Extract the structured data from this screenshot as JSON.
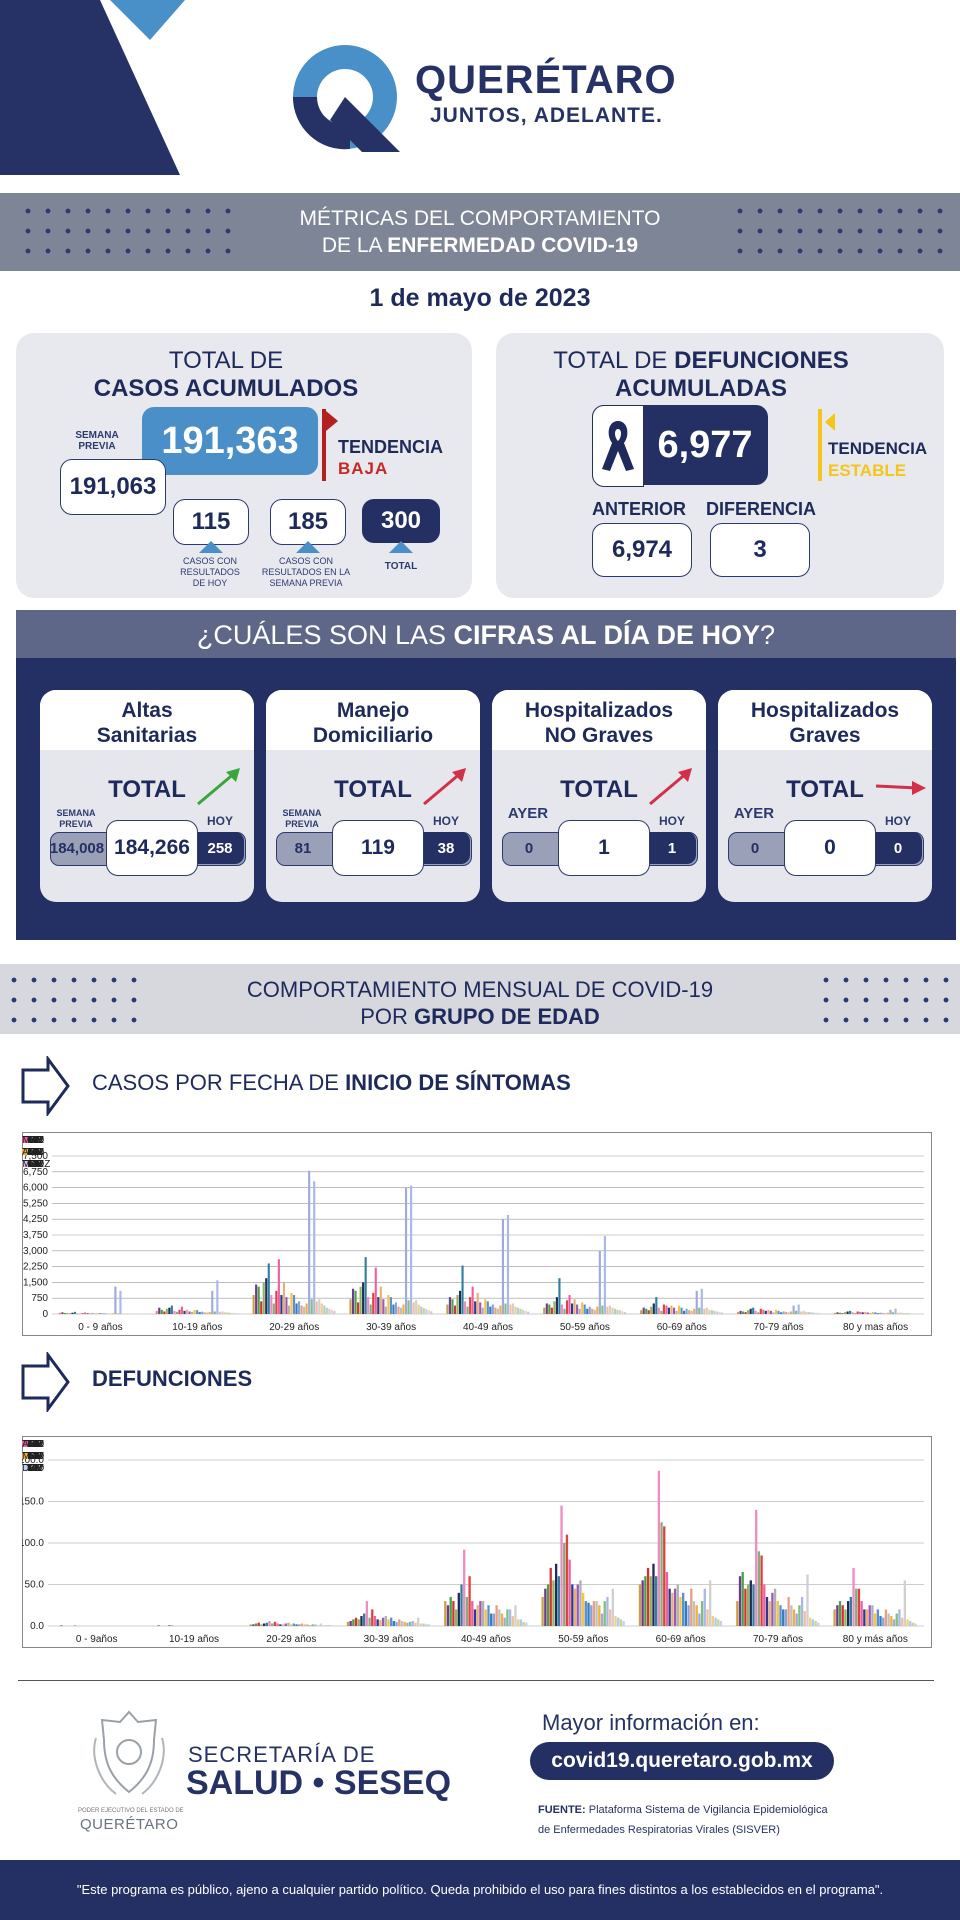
{
  "brand": {
    "name": "QUERÉTARO",
    "tagline": "JUNTOS, ADELANTE."
  },
  "banner": {
    "line1": "MÉTRICAS DEL COMPORTAMIENTO",
    "line2_pre": "DE LA ",
    "line2_bold": "ENFERMEDAD COVID-19"
  },
  "date": "1 de mayo de 2023",
  "casos": {
    "title1": "TOTAL DE",
    "title2": "CASOS ACUMULADOS",
    "semana_label": "SEMANA PREVIA",
    "semana_value": "191,063",
    "total": "191,363",
    "tendencia_label": "TENDENCIA",
    "tendencia_value": "BAJA",
    "hoy": "115",
    "hoy_label": "CASOS CON RESULTADOS DE HOY",
    "previa": "185",
    "previa_label": "CASOS CON RESULTADOS EN LA SEMANA PREVIA",
    "suma": "300",
    "suma_label": "TOTAL"
  },
  "defunciones": {
    "title1_pre": "TOTAL DE ",
    "title1_bold": "DEFUNCIONES",
    "title2": "ACUMULADAS",
    "total": "6,977",
    "tendencia_label": "TENDENCIA",
    "tendencia_value": "ESTABLE",
    "anterior_label": "ANTERIOR",
    "anterior": "6,974",
    "diferencia_label": "DIFERENCIA",
    "diferencia": "3"
  },
  "hoy": {
    "title_pre": "¿CUÁLES SON LAS ",
    "title_bold": "CIFRAS AL DÍA DE HOY",
    "title_post": "?",
    "cards": [
      {
        "line1": "Altas",
        "line2": "Sanitarias",
        "total_label": "TOTAL",
        "left_label": "SEMANA PREVIA",
        "left": "184,008",
        "mid": "184,266",
        "right_label": "HOY",
        "right": "258"
      },
      {
        "line1": "Manejo",
        "line2": "Domiciliario",
        "total_label": "TOTAL",
        "left_label": "SEMANA PREVIA",
        "left": "81",
        "mid": "119",
        "right_label": "HOY",
        "right": "38"
      },
      {
        "line1": "Hospitalizados",
        "line2": "NO Graves",
        "total_label": "TOTAL",
        "left_label": "AYER",
        "left": "0",
        "mid": "1",
        "right_label": "HOY",
        "right": "1"
      },
      {
        "line1": "Hospitalizados",
        "line2": "Graves",
        "total_label": "TOTAL",
        "left_label": "AYER",
        "left": "0",
        "mid": "0",
        "right_label": "HOY",
        "right": "0"
      }
    ],
    "colors": {
      "up_green": "#3aa53a",
      "up_red": "#d32f4a",
      "flat_red": "#d32f4a"
    }
  },
  "mensual": {
    "line1": "COMPORTAMIENTO MENSUAL DE COVID-19",
    "line2_pre": "POR ",
    "line2_bold": "GRUPO DE EDAD"
  },
  "sec1": {
    "pre": "CASOS POR FECHA DE ",
    "bold": "INICIO  DE SÍNTOMAS"
  },
  "sec2": {
    "bold": "DEFUNCIONES"
  },
  "chart_data": [
    {
      "type": "bar",
      "categories": [
        "0 - 9 años",
        "10-19 años",
        "20-29 años",
        "30-39 años",
        "40-49 años",
        "50-59 años",
        "60-69 años",
        "70-79 años",
        "80 y mas años"
      ],
      "ylim": [
        0,
        7500
      ],
      "yticks": [
        "0",
        "750",
        "1,500",
        "2,250",
        "3,000",
        "3,750",
        "4,250",
        "5,250",
        "6,000",
        "6,750",
        "7,500"
      ],
      "legend": [
        "JUL",
        "AGO",
        "SEP",
        "OCT",
        "NOV",
        "DIC",
        "ENE",
        "FEB",
        "MAR",
        "ABR",
        "MAY",
        "JUN",
        "JUL",
        "AGO",
        "SEP",
        "OCT",
        "NOV",
        "DIC",
        "ENE",
        "FEB",
        "MAR",
        "ABR",
        "MAY",
        "JUN",
        "JUL",
        "AGO",
        "SEP",
        "OCT",
        "NOV",
        "DIC",
        "ENE",
        "FEB",
        "MARZ"
      ],
      "series_values": [
        [
          60,
          150,
          900,
          700,
          450,
          300,
          180,
          100,
          50
        ],
        [
          80,
          300,
          1400,
          1200,
          800,
          500,
          300,
          150,
          80
        ],
        [
          50,
          200,
          1300,
          1100,
          700,
          450,
          250,
          120,
          60
        ],
        [
          30,
          120,
          600,
          550,
          400,
          300,
          180,
          90,
          40
        ],
        [
          40,
          250,
          1500,
          1300,
          900,
          600,
          350,
          180,
          90
        ],
        [
          60,
          300,
          1700,
          1500,
          1100,
          800,
          500,
          250,
          120
        ],
        [
          100,
          400,
          2400,
          2700,
          2300,
          1700,
          800,
          300,
          150
        ],
        [
          30,
          150,
          900,
          800,
          600,
          450,
          300,
          150,
          80
        ],
        [
          20,
          100,
          500,
          450,
          350,
          250,
          150,
          80,
          40
        ],
        [
          40,
          200,
          1100,
          1000,
          800,
          650,
          450,
          250,
          120
        ],
        [
          70,
          350,
          2600,
          2200,
          1300,
          900,
          400,
          200,
          100
        ],
        [
          30,
          150,
          900,
          800,
          600,
          500,
          300,
          150,
          80
        ],
        [
          40,
          200,
          1500,
          1300,
          1000,
          700,
          400,
          200,
          100
        ],
        [
          30,
          120,
          800,
          700,
          550,
          450,
          300,
          150,
          70
        ],
        [
          20,
          100,
          400,
          350,
          300,
          250,
          150,
          80,
          40
        ],
        [
          50,
          200,
          1000,
          900,
          700,
          550,
          400,
          200,
          100
        ],
        [
          40,
          180,
          900,
          800,
          600,
          450,
          300,
          150,
          80
        ],
        [
          20,
          90,
          500,
          450,
          350,
          250,
          150,
          80,
          40
        ],
        [
          30,
          110,
          600,
          550,
          450,
          350,
          250,
          120,
          60
        ],
        [
          20,
          80,
          400,
          350,
          300,
          250,
          180,
          100,
          50
        ],
        [
          20,
          70,
          350,
          300,
          250,
          200,
          150,
          80,
          40
        ],
        [
          30,
          100,
          500,
          450,
          400,
          350,
          250,
          120,
          60
        ],
        [
          1300,
          1100,
          6800,
          6000,
          4500,
          3000,
          1100,
          400,
          200
        ],
        [
          30,
          120,
          700,
          650,
          500,
          400,
          300,
          150,
          80
        ],
        [
          1100,
          1600,
          6300,
          6100,
          4700,
          3700,
          1200,
          450,
          250
        ],
        [
          20,
          100,
          600,
          550,
          450,
          350,
          250,
          120,
          60
        ],
        [
          30,
          120,
          700,
          650,
          500,
          400,
          300,
          150,
          70
        ],
        [
          20,
          80,
          500,
          450,
          350,
          300,
          200,
          100,
          50
        ],
        [
          20,
          70,
          400,
          350,
          300,
          250,
          180,
          90,
          40
        ],
        [
          20,
          60,
          300,
          280,
          250,
          200,
          150,
          80,
          40
        ],
        [
          10,
          50,
          250,
          230,
          200,
          180,
          120,
          70,
          30
        ],
        [
          10,
          40,
          200,
          180,
          150,
          130,
          100,
          60,
          30
        ],
        [
          10,
          30,
          150,
          130,
          110,
          90,
          70,
          40,
          20
        ]
      ]
    },
    {
      "type": "bar",
      "categories": [
        "0 - 9años",
        "10-19 años",
        "20-29 años",
        "30-39 años",
        "40-49 años",
        "50-59 años",
        "60-69 años",
        "70-79 años",
        "80 y más años"
      ],
      "ylim": [
        0,
        200
      ],
      "yticks": [
        "0.0",
        "50.0",
        "100.0",
        "150.0",
        "200.0"
      ],
      "legend": [
        "JUN",
        "JUL",
        "AGO",
        "SEP",
        "OCT",
        "NOV",
        "DIC",
        "ENE",
        "FEB",
        "MAR",
        "ABR",
        "MAY",
        "JUN",
        "JUL",
        "AGO",
        "SEP",
        "OCT",
        "NOV",
        "DIC",
        "ENE",
        "FEB",
        "MAR",
        "ABR",
        "MAY",
        "JUN",
        "JUL",
        "AGO",
        "SEP",
        "OCT",
        "NOV",
        "DIC"
      ],
      "series_values": [
        [
          0,
          0,
          2,
          5,
          30,
          35,
          50,
          30,
          20
        ],
        [
          0,
          0,
          2,
          6,
          25,
          45,
          55,
          60,
          25
        ],
        [
          1,
          1,
          3,
          8,
          35,
          50,
          60,
          65,
          30
        ],
        [
          0,
          0,
          4,
          10,
          30,
          70,
          70,
          45,
          25
        ],
        [
          0,
          0,
          2,
          8,
          20,
          55,
          60,
          50,
          20
        ],
        [
          0,
          0,
          3,
          12,
          40,
          75,
          75,
          55,
          30
        ],
        [
          0,
          1,
          4,
          15,
          50,
          60,
          60,
          50,
          35
        ],
        [
          1,
          1,
          6,
          30,
          92,
          145,
          187,
          140,
          70
        ],
        [
          0,
          0,
          3,
          10,
          35,
          100,
          125,
          90,
          45
        ],
        [
          0,
          0,
          5,
          20,
          60,
          110,
          120,
          85,
          45
        ],
        [
          0,
          0,
          3,
          12,
          30,
          80,
          65,
          50,
          30
        ],
        [
          0,
          0,
          2,
          8,
          20,
          50,
          45,
          35,
          20
        ],
        [
          0,
          0,
          2,
          7,
          25,
          45,
          40,
          30,
          20
        ],
        [
          0,
          0,
          3,
          10,
          30,
          50,
          45,
          40,
          25
        ],
        [
          0,
          0,
          4,
          12,
          30,
          55,
          50,
          45,
          25
        ],
        [
          0,
          0,
          2,
          8,
          20,
          40,
          35,
          30,
          15
        ],
        [
          0,
          0,
          3,
          10,
          25,
          30,
          40,
          25,
          20
        ],
        [
          0,
          0,
          2,
          6,
          15,
          28,
          30,
          20,
          12
        ],
        [
          0,
          0,
          2,
          5,
          15,
          25,
          25,
          20,
          10
        ],
        [
          0,
          0,
          3,
          8,
          25,
          30,
          45,
          35,
          20
        ],
        [
          0,
          0,
          2,
          6,
          20,
          30,
          30,
          25,
          15
        ],
        [
          0,
          0,
          2,
          5,
          15,
          25,
          25,
          20,
          12
        ],
        [
          0,
          0,
          1,
          4,
          10,
          15,
          15,
          15,
          8
        ],
        [
          0,
          0,
          2,
          5,
          20,
          30,
          30,
          25,
          15
        ],
        [
          0,
          0,
          2,
          6,
          20,
          35,
          45,
          35,
          20
        ],
        [
          0,
          0,
          1,
          4,
          12,
          20,
          20,
          18,
          10
        ],
        [
          0,
          0,
          3,
          10,
          25,
          45,
          55,
          62,
          55
        ],
        [
          0,
          0,
          1,
          3,
          8,
          12,
          12,
          10,
          8
        ],
        [
          0,
          0,
          1,
          3,
          8,
          10,
          10,
          8,
          6
        ],
        [
          0,
          0,
          1,
          2,
          5,
          8,
          8,
          6,
          4
        ],
        [
          0,
          0,
          1,
          2,
          4,
          6,
          6,
          4,
          3
        ]
      ]
    }
  ],
  "chart_colors": [
    "#c8a04a",
    "#6f3a8c",
    "#4aa04a",
    "#d93030",
    "#8fb65a",
    "#1f2a5c",
    "#2f7fa0",
    "#f08ac0",
    "#7fb07f",
    "#e04040",
    "#f060a0",
    "#2a3a90",
    "#e8b070",
    "#9b59b6",
    "#b0b0b0",
    "#f5c542",
    "#5a8ed8",
    "#2c7fb8",
    "#8ea0d8",
    "#e8a080",
    "#c0c0c0",
    "#f0b040",
    "#9fa8e0",
    "#7fc07f",
    "#a8b8e8",
    "#f0c0a0",
    "#d0d0d0",
    "#f0d080",
    "#b0c8f0",
    "#c0d890",
    "#c8d0e8",
    "#f0d0c0",
    "#d8c0e0"
  ],
  "footer": {
    "sec_line1": "SECRETARÍA DE",
    "sec_line2": "SALUD • SESEQ",
    "poder": "PODER EJECUTIVO DEL ESTADO DE",
    "estado": "QUERÉTARO",
    "mayor": "Mayor información en:",
    "url": "covid19.queretaro.gob.mx",
    "fuente_label": "FUENTE:",
    "fuente1": "Plataforma Sistema  de Vigilancia Epidemiológica",
    "fuente2": "de Enfermedades Respiratorias Virales (SISVER)",
    "disclaimer": "\"Este programa es público, ajeno a cualquier partido político. Queda prohibido el uso para fines distintos a los establecidos en el programa\"."
  }
}
